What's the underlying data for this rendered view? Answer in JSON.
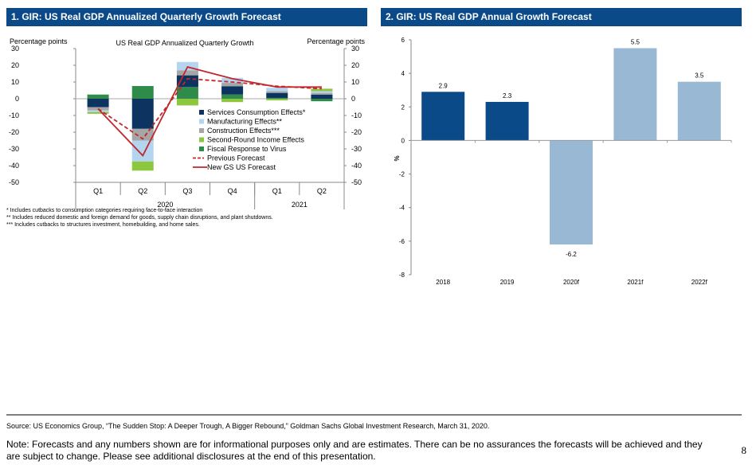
{
  "panels": {
    "left_title": "1. GIR: US Real GDP Annualized Quarterly Growth Forecast",
    "right_title": "2. GIR: US Real GDP Annual Growth Forecast"
  },
  "footnotes": [
    "* Includes cutbacks to consumption categories requiring face-to-face interaction",
    "** Includes reduced domestic and foreign demand for goods, supply chain disruptions, and plant shutdowns.",
    "*** Includes cutbacks to structures investment, homebuilding, and home sales."
  ],
  "footer": {
    "source": "Source: US Economics Group, “The Sudden Stop: A Deeper Trough, A Bigger Rebound,” Goldman Sachs Global Investment Research, March 31, 2020.",
    "note": "Note: Forecasts and any numbers shown are for informational purposes only and are estimates. There can be no assurances the forecasts will be achieved and they are subject to change. Please see additional disclosures at the end of this presentation.",
    "page_number": "8"
  },
  "chart_data": [
    {
      "type": "bar",
      "stacked": true,
      "title": "US Real GDP Annualized Quarterly Growth",
      "ylabel_left": "Percentage points",
      "ylabel_right": "Percentage points",
      "ylim": [
        -50,
        30
      ],
      "yticks": [
        30,
        20,
        10,
        0,
        -10,
        -20,
        -30,
        -40,
        -50
      ],
      "categories": [
        "Q1",
        "Q2",
        "Q3",
        "Q4",
        "Q1",
        "Q2"
      ],
      "year_groups": [
        {
          "label": "2020",
          "span": 4
        },
        {
          "label": "2021",
          "span": 2
        }
      ],
      "series": [
        {
          "name": "Services Consumption Effects*",
          "color": "#0d3461",
          "values": [
            -5,
            -18,
            7,
            5,
            3,
            2.5
          ]
        },
        {
          "name": "Manufacturing Effects**",
          "color": "#b4d5f0",
          "values": [
            -1,
            -12.5,
            5,
            3,
            2,
            1
          ]
        },
        {
          "name": "Construction Effects***",
          "color": "#a6a6a6",
          "values": [
            -2,
            -7,
            3,
            2,
            1,
            1
          ]
        },
        {
          "name": "Second-Round Income Effects",
          "color": "#8dc63f",
          "values": [
            -1,
            -5.5,
            -4,
            -2,
            -1,
            1.5
          ]
        },
        {
          "name": "Fiscal Response to Virus",
          "color": "#2e8b4a",
          "values": [
            2.5,
            7.6,
            7,
            2.5,
            0.5,
            -1.5
          ]
        }
      ],
      "lines": [
        {
          "name": "Previous Forecast",
          "style": "dashed",
          "color": "#c0282d",
          "values": [
            -6,
            -24,
            12,
            10,
            7.5,
            6
          ]
        },
        {
          "name": "New GS US Forecast",
          "style": "solid",
          "color": "#c0282d",
          "values": [
            -6,
            -34,
            19,
            12,
            7,
            7
          ]
        }
      ],
      "legend": "center-right"
    },
    {
      "type": "bar",
      "title": "",
      "xlabel": "",
      "ylabel": "%",
      "ylim": [
        -8,
        6
      ],
      "yticks": [
        6,
        4,
        2,
        0,
        -2,
        -4,
        -6,
        -8
      ],
      "categories": [
        "2018",
        "2019",
        "2020f",
        "2021f",
        "2022f"
      ],
      "values": [
        2.9,
        2.3,
        -6.2,
        5.5,
        3.5
      ],
      "data_labels": [
        "2.9",
        "2.3",
        "-6.2",
        "5.5",
        "3.5"
      ],
      "colors": [
        "#0b4a89",
        "#0b4a89",
        "#98b8d4",
        "#98b8d4",
        "#98b8d4"
      ],
      "grid": false
    }
  ]
}
